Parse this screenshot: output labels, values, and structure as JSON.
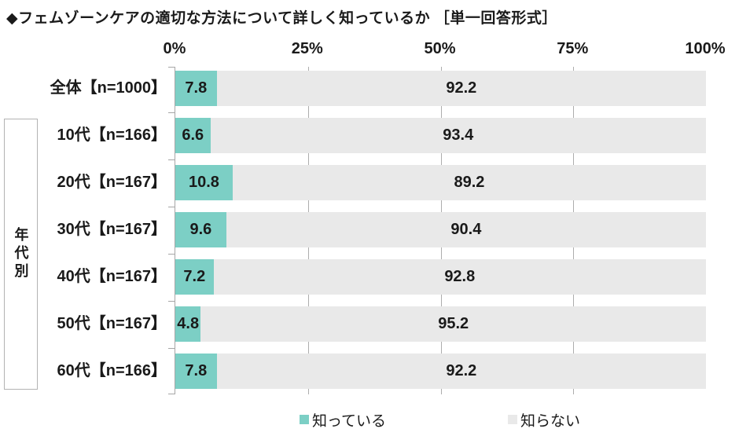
{
  "title": "◆フェムゾーンケアの適切な方法について詳しく知っているか ［単一回答形式］",
  "group_label": "年代別",
  "axis": {
    "tick_labels": [
      "0%",
      "25%",
      "50%",
      "75%",
      "100%"
    ],
    "tick_percents": [
      0,
      25,
      50,
      75,
      100
    ]
  },
  "legend": {
    "items": [
      {
        "label": "知っている",
        "color": "#7ccfc5"
      },
      {
        "label": "知らない",
        "color": "#e9e9e9"
      }
    ]
  },
  "colors": {
    "known": "#7ccfc5",
    "unknown": "#e9e9e9",
    "axis_line": "#a6a6a6",
    "gridline": "#adadad",
    "text": "#1a1a1a",
    "group_box_border": "#b3b3b3"
  },
  "chart_data": {
    "type": "bar",
    "orientation": "horizontal",
    "stacked": true,
    "title": "フェムゾーンケアの適切な方法について詳しく知っているか（単一回答形式）",
    "categories": [
      "全体【n=1000】",
      "10代【n=166】",
      "20代【n=167】",
      "30代【n=167】",
      "40代【n=167】",
      "50代【n=167】",
      "60代【n=166】"
    ],
    "series": [
      {
        "name": "知っている",
        "color": "#7ccfc5",
        "values": [
          7.8,
          6.6,
          10.8,
          9.6,
          7.2,
          4.8,
          7.8
        ]
      },
      {
        "name": "知らない",
        "color": "#e9e9e9",
        "values": [
          92.2,
          93.4,
          89.2,
          90.4,
          92.8,
          95.2,
          92.2
        ]
      }
    ],
    "x_axis": {
      "min": 0,
      "max": 100,
      "ticks": [
        "0%",
        "25%",
        "50%",
        "75%",
        "100%"
      ]
    },
    "value_labels": "inside-segments",
    "legend_position": "bottom",
    "grid": "vertical-ticks-at-25-50-75",
    "group_bracket": {
      "label": "年代別",
      "applies_to": [
        "10代【n=166】",
        "20代【n=167】",
        "30代【n=167】",
        "40代【n=167】",
        "50代【n=167】",
        "60代【n=166】"
      ]
    }
  }
}
